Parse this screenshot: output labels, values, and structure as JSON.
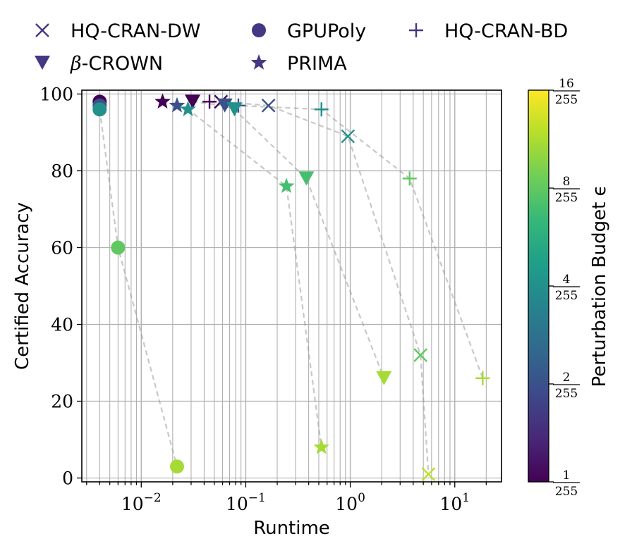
{
  "chart_data": {
    "type": "scatter",
    "xlabel": "Runtime",
    "ylabel": "Certified Accuracy",
    "x_scale": "log",
    "xlim": [
      0.0027,
      28
    ],
    "ylim": [
      -1,
      101
    ],
    "x_ticks": [
      {
        "value": 0.01,
        "base": "10",
        "exp": "−2"
      },
      {
        "value": 0.1,
        "base": "10",
        "exp": "−1"
      },
      {
        "value": 1,
        "base": "10",
        "exp": "0"
      },
      {
        "value": 10,
        "base": "10",
        "exp": "1"
      }
    ],
    "y_ticks": [
      "0",
      "20",
      "40",
      "60",
      "80",
      "100"
    ],
    "grid": true,
    "legend_position": "top",
    "legend": [
      {
        "name": "HQ-CRAN-DW",
        "marker": "x"
      },
      {
        "name": "GPUPoly",
        "marker": "circle"
      },
      {
        "name": "HQ-CRAN-BD",
        "marker": "plus"
      },
      {
        "name_prefix": "β",
        "name": "-CROWN",
        "marker": "triangle-down"
      },
      {
        "name": "PRIMA",
        "marker": "star"
      }
    ],
    "legend_color": "#453781",
    "colorbar": {
      "label": "Perturbation Budget ϵ",
      "ticks": [
        {
          "num": "1",
          "den": "255"
        },
        {
          "num": "2",
          "den": "255"
        },
        {
          "num": "4",
          "den": "255"
        },
        {
          "num": "8",
          "den": "255"
        },
        {
          "num": "16",
          "den": "255"
        }
      ],
      "colormap": [
        "#440154",
        "#482878",
        "#3e4989",
        "#31688e",
        "#26828e",
        "#1f9e89",
        "#35b779",
        "#6ece58",
        "#b5de2b",
        "#fde725"
      ]
    },
    "series": [
      {
        "name": "HQ-CRAN-DW",
        "marker": "x",
        "points": [
          {
            "x": 0.058,
            "y": 98,
            "eps": 1
          },
          {
            "x": 0.165,
            "y": 97,
            "eps": 2
          },
          {
            "x": 0.95,
            "y": 89,
            "eps": 4
          },
          {
            "x": 4.7,
            "y": 32,
            "eps": 8
          },
          {
            "x": 5.6,
            "y": 1,
            "eps": 12
          }
        ]
      },
      {
        "name": "GPUPoly",
        "marker": "circle",
        "points": [
          {
            "x": 0.004,
            "y": 98,
            "eps": 1
          },
          {
            "x": 0.004,
            "y": 97,
            "eps": 2
          },
          {
            "x": 0.004,
            "y": 96,
            "eps": 4
          },
          {
            "x": 0.006,
            "y": 60,
            "eps": 8
          },
          {
            "x": 0.022,
            "y": 3,
            "eps": 11
          }
        ]
      },
      {
        "name": "HQ-CRAN-BD",
        "marker": "plus",
        "points": [
          {
            "x": 0.045,
            "y": 98,
            "eps": 1
          },
          {
            "x": 0.085,
            "y": 97,
            "eps": 2
          },
          {
            "x": 0.53,
            "y": 96,
            "eps": 4
          },
          {
            "x": 3.7,
            "y": 78,
            "eps": 8
          },
          {
            "x": 18.5,
            "y": 26,
            "eps": 11
          }
        ]
      },
      {
        "name": "β-CROWN",
        "marker": "triangle-down",
        "points": [
          {
            "x": 0.031,
            "y": 98,
            "eps": 1
          },
          {
            "x": 0.063,
            "y": 97,
            "eps": 2
          },
          {
            "x": 0.078,
            "y": 96,
            "eps": 4
          },
          {
            "x": 0.38,
            "y": 78,
            "eps": 7
          },
          {
            "x": 2.1,
            "y": 26,
            "eps": 11
          }
        ]
      },
      {
        "name": "PRIMA",
        "marker": "star",
        "points": [
          {
            "x": 0.016,
            "y": 98,
            "eps": 1
          },
          {
            "x": 0.022,
            "y": 97,
            "eps": 2
          },
          {
            "x": 0.028,
            "y": 96,
            "eps": 4
          },
          {
            "x": 0.245,
            "y": 76,
            "eps": 7
          },
          {
            "x": 0.53,
            "y": 8,
            "eps": 11
          }
        ]
      }
    ]
  }
}
